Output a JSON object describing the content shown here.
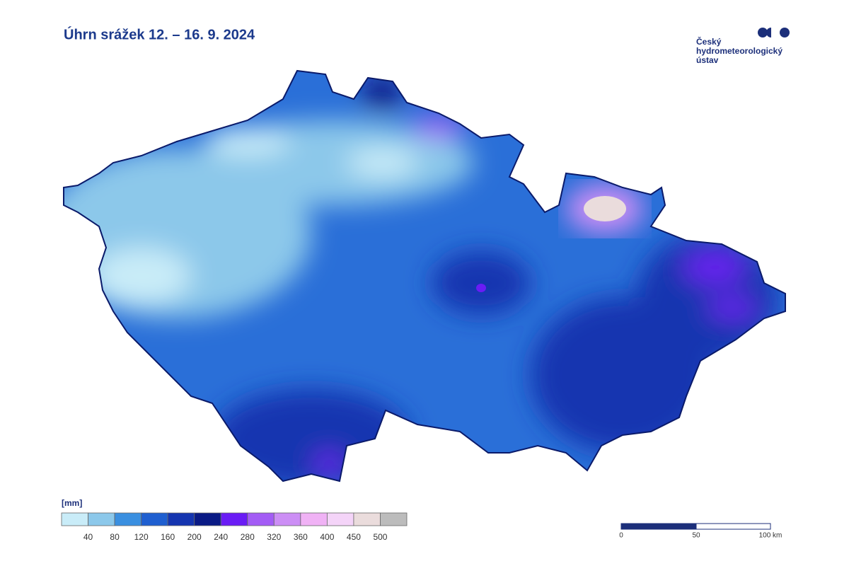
{
  "title": "Úhrn srážek 12. – 16. 9. 2024",
  "logo": {
    "lines": [
      "Český",
      "hydrometeorologický",
      "ústav"
    ]
  },
  "legend": {
    "unit": "[mm]",
    "colors": [
      "#c9ecf8",
      "#8cc8ea",
      "#3a8fe0",
      "#1f5fd0",
      "#1535b0",
      "#0a1a85",
      "#6a1cf5",
      "#a35cf5",
      "#cc8ef5",
      "#f0b2f5",
      "#f4d4f8",
      "#eadcdc",
      "#bcbcbc"
    ],
    "breaks": [
      40,
      80,
      120,
      160,
      200,
      240,
      280,
      320,
      360,
      400,
      450,
      500
    ]
  },
  "scale_bar": {
    "labels": [
      "0",
      "50",
      "100 km"
    ]
  }
}
